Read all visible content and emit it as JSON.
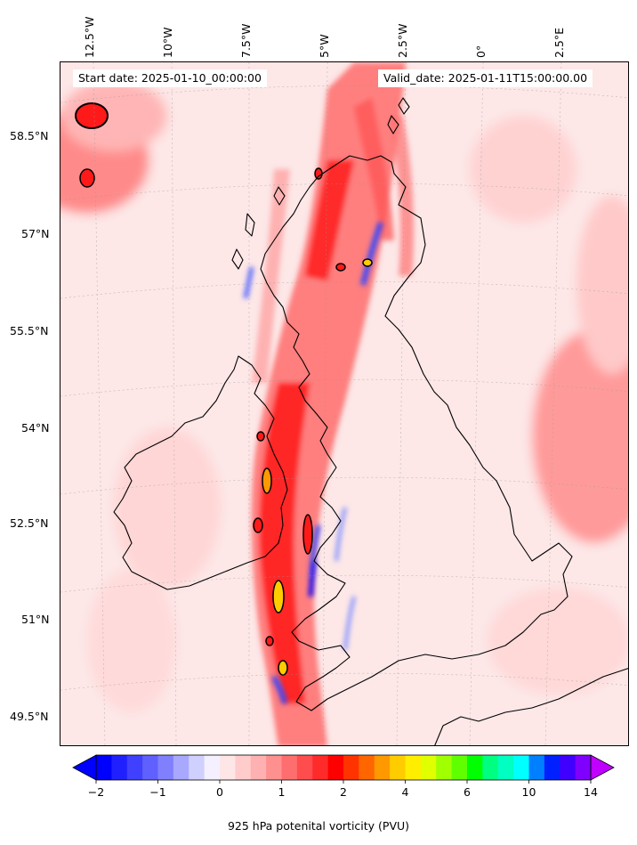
{
  "header": {
    "start_label": "Start date: 2025-01-10_00:00:00",
    "valid_label": "Valid_date: 2025-01-11T15:00:00.00"
  },
  "axes": {
    "lat_labels": [
      "58.5°N",
      "57°N",
      "55.5°N",
      "54°N",
      "52.5°N",
      "51°N",
      "49.5°N"
    ],
    "lon_labels": [
      "12.5°W",
      "10°W",
      "7.5°W",
      "5°W",
      "2.5°W",
      "0°",
      "2.5°E"
    ]
  },
  "colorbar": {
    "title": "925 hPa potenital vorticity (PVU)",
    "tick_labels": [
      "−2",
      "−1",
      "0",
      "1",
      "2",
      "4",
      "6",
      "10",
      "14"
    ],
    "colors": [
      "#0000ff",
      "#2020ff",
      "#4040ff",
      "#6060ff",
      "#8080ff",
      "#a8a8ff",
      "#d0d0ff",
      "#f4f0ff",
      "#ffe6e6",
      "#ffcccc",
      "#ffb0b0",
      "#ff9090",
      "#ff6e6e",
      "#ff4c4c",
      "#ff2a2a",
      "#ff0000",
      "#ff3300",
      "#ff6600",
      "#ff9900",
      "#ffcc00",
      "#ffee00",
      "#e0ff00",
      "#a0ff00",
      "#60ff00",
      "#00ff00",
      "#00ff80",
      "#00ffc0",
      "#00ffff",
      "#0080ff",
      "#0020ff",
      "#4000ff",
      "#8000ff"
    ],
    "under_color": "#0000ff",
    "over_color": "#c000ff"
  },
  "map": {
    "background_color": "#fde7e7",
    "strong_color": "#ff1a1a",
    "negative_color": "#3344ff",
    "coastline_color": "#000000"
  }
}
